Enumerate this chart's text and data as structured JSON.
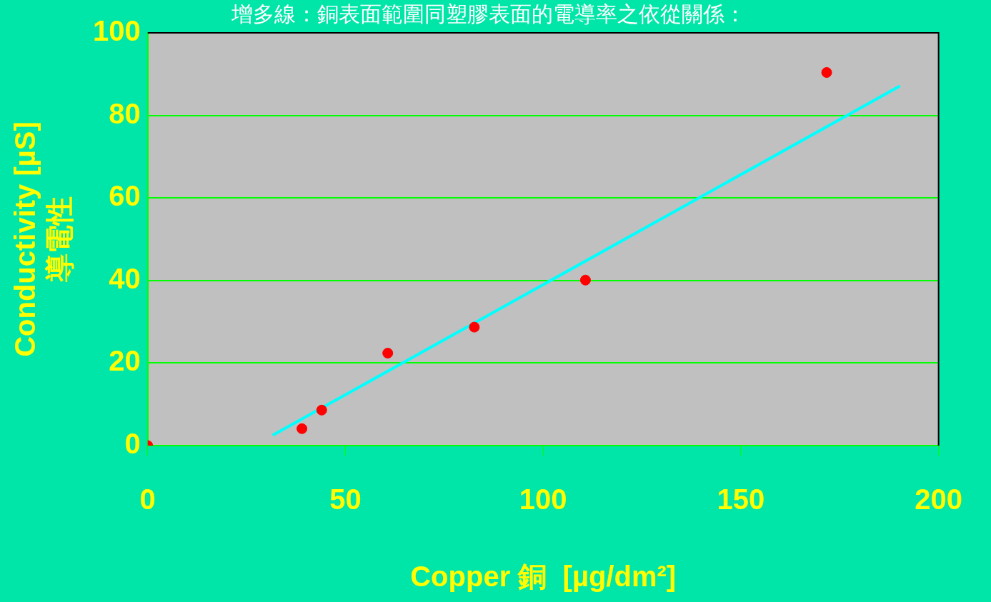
{
  "chart_data": {
    "type": "scatter",
    "title": "增多線：銅表面範圍同塑膠表面的電導率之依從關係：",
    "xlabel": "Copper 銅  [µg/dm²]",
    "ylabel": "Conductivity [µS]\n導電性",
    "xlim": [
      0,
      200
    ],
    "xticks": [
      0,
      50,
      100,
      150,
      200
    ],
    "ylim": [
      0,
      100
    ],
    "yticks": [
      0,
      20,
      40,
      60,
      80,
      100
    ],
    "grid": "y",
    "legend": false,
    "marker": "circle",
    "series": [
      {
        "color": "#ff0000",
        "x": [
          0,
          39,
          44,
          60.7,
          82.6,
          110.7,
          171.7
        ],
        "values": [
          0,
          4.1,
          8.6,
          22.4,
          28.7,
          40.1,
          90.4
        ]
      },
      {
        "type": "line",
        "color": "#00ffff",
        "marker": "none",
        "x": [
          31.6,
          190.2
        ],
        "values": [
          2.5,
          87.1
        ]
      }
    ]
  }
}
